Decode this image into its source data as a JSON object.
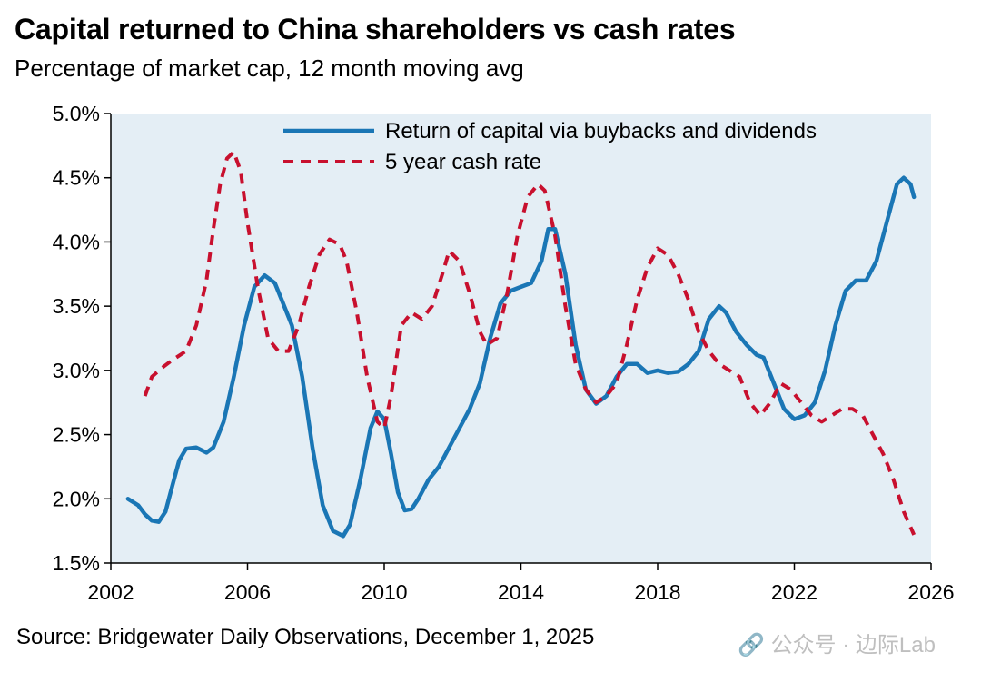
{
  "chart_data": {
    "type": "line",
    "title": "Capital returned to China shareholders vs cash rates",
    "subtitle": "Percentage of market cap, 12 month moving avg",
    "source": "Source: Bridgewater Daily Observations, December 1, 2025",
    "xlim": [
      2002,
      2026
    ],
    "ylim": [
      1.5,
      5.0
    ],
    "x_ticks": [
      2002,
      2006,
      2010,
      2014,
      2018,
      2022,
      2026
    ],
    "x_tick_labels": [
      "2002",
      "2006",
      "2010",
      "2014",
      "2018",
      "2022",
      "2026"
    ],
    "y_ticks": [
      1.5,
      2.0,
      2.5,
      3.0,
      3.5,
      4.0,
      4.5,
      5.0
    ],
    "y_tick_labels": [
      "1.5%",
      "2.0%",
      "2.5%",
      "3.0%",
      "3.5%",
      "4.0%",
      "4.5%",
      "5.0%"
    ],
    "grid": false,
    "legend_position": "top-right",
    "plot_background": "#e4eef5",
    "series": [
      {
        "name": "Return of capital via buybacks and dividends",
        "color": "#1a76b5",
        "style": "solid",
        "x": [
          2002.5,
          2002.8,
          2003.0,
          2003.2,
          2003.4,
          2003.6,
          2003.8,
          2004.0,
          2004.2,
          2004.5,
          2004.8,
          2005.0,
          2005.3,
          2005.6,
          2005.9,
          2006.2,
          2006.5,
          2006.8,
          2007.0,
          2007.3,
          2007.6,
          2007.9,
          2008.2,
          2008.5,
          2008.8,
          2009.0,
          2009.3,
          2009.6,
          2009.8,
          2010.0,
          2010.2,
          2010.4,
          2010.6,
          2010.8,
          2011.0,
          2011.3,
          2011.6,
          2011.9,
          2012.2,
          2012.5,
          2012.8,
          2013.1,
          2013.4,
          2013.7,
          2014.0,
          2014.3,
          2014.6,
          2014.8,
          2015.0,
          2015.3,
          2015.6,
          2015.9,
          2016.2,
          2016.5,
          2016.8,
          2017.1,
          2017.4,
          2017.7,
          2018.0,
          2018.3,
          2018.6,
          2018.9,
          2019.2,
          2019.5,
          2019.8,
          2020.0,
          2020.3,
          2020.6,
          2020.9,
          2021.1,
          2021.4,
          2021.7,
          2022.0,
          2022.3,
          2022.6,
          2022.9,
          2023.2,
          2023.5,
          2023.8,
          2024.1,
          2024.4,
          2024.7,
          2025.0,
          2025.2,
          2025.4,
          2025.5
        ],
        "y": [
          2.0,
          1.95,
          1.88,
          1.83,
          1.82,
          1.9,
          2.1,
          2.3,
          2.39,
          2.4,
          2.36,
          2.4,
          2.6,
          2.95,
          3.35,
          3.65,
          3.74,
          3.68,
          3.55,
          3.35,
          2.95,
          2.4,
          1.95,
          1.75,
          1.71,
          1.8,
          2.15,
          2.55,
          2.68,
          2.62,
          2.35,
          2.05,
          1.91,
          1.92,
          2.0,
          2.15,
          2.25,
          2.4,
          2.55,
          2.7,
          2.9,
          3.25,
          3.52,
          3.62,
          3.65,
          3.68,
          3.85,
          4.1,
          4.1,
          3.75,
          3.2,
          2.85,
          2.74,
          2.8,
          2.95,
          3.05,
          3.05,
          2.98,
          3.0,
          2.98,
          2.99,
          3.05,
          3.15,
          3.4,
          3.5,
          3.45,
          3.3,
          3.2,
          3.12,
          3.1,
          2.9,
          2.7,
          2.62,
          2.65,
          2.75,
          3.0,
          3.35,
          3.62,
          3.7,
          3.7,
          3.85,
          4.15,
          4.45,
          4.5,
          4.45,
          4.35
        ]
      },
      {
        "name": "5 year cash rate",
        "color": "#c8102e",
        "style": "dashed",
        "x": [
          2003.0,
          2003.2,
          2003.5,
          2003.8,
          2004.2,
          2004.5,
          2004.8,
          2005.0,
          2005.2,
          2005.4,
          2005.6,
          2005.8,
          2006.0,
          2006.3,
          2006.6,
          2006.9,
          2007.2,
          2007.5,
          2007.8,
          2008.1,
          2008.4,
          2008.7,
          2008.9,
          2009.2,
          2009.5,
          2009.8,
          2010.0,
          2010.2,
          2010.5,
          2010.8,
          2011.1,
          2011.4,
          2011.7,
          2011.9,
          2012.2,
          2012.5,
          2012.8,
          2013.0,
          2013.3,
          2013.6,
          2013.9,
          2014.2,
          2014.5,
          2014.7,
          2015.0,
          2015.3,
          2015.6,
          2015.9,
          2016.2,
          2016.5,
          2016.8,
          2017.1,
          2017.4,
          2017.7,
          2018.0,
          2018.3,
          2018.6,
          2018.9,
          2019.2,
          2019.5,
          2019.8,
          2020.1,
          2020.4,
          2020.7,
          2021.0,
          2021.3,
          2021.6,
          2021.9,
          2022.2,
          2022.5,
          2022.8,
          2023.1,
          2023.4,
          2023.7,
          2024.0,
          2024.3,
          2024.6,
          2024.9,
          2025.2,
          2025.5
        ],
        "y": [
          2.8,
          2.95,
          3.02,
          3.08,
          3.15,
          3.35,
          3.7,
          4.1,
          4.45,
          4.65,
          4.7,
          4.55,
          4.15,
          3.65,
          3.25,
          3.15,
          3.15,
          3.35,
          3.65,
          3.9,
          4.02,
          3.98,
          3.85,
          3.45,
          2.95,
          2.6,
          2.55,
          2.8,
          3.35,
          3.45,
          3.4,
          3.5,
          3.75,
          3.93,
          3.85,
          3.6,
          3.3,
          3.2,
          3.25,
          3.6,
          4.05,
          4.35,
          4.45,
          4.4,
          4.05,
          3.5,
          3.05,
          2.85,
          2.75,
          2.8,
          2.9,
          3.2,
          3.55,
          3.8,
          3.95,
          3.9,
          3.75,
          3.55,
          3.3,
          3.15,
          3.05,
          3.0,
          2.95,
          2.75,
          2.65,
          2.75,
          2.9,
          2.85,
          2.75,
          2.65,
          2.6,
          2.65,
          2.7,
          2.7,
          2.65,
          2.5,
          2.35,
          2.15,
          1.9,
          1.72
        ]
      }
    ]
  },
  "watermark": "🔗 公众号 · 边际Lab"
}
